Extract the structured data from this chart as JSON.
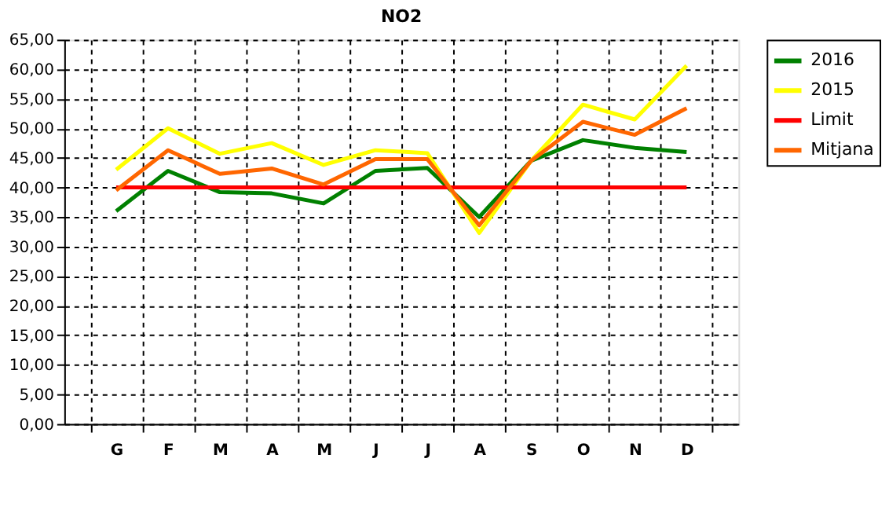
{
  "chart_data": {
    "type": "line",
    "title": "NO2",
    "categories": [
      "G",
      "F",
      "M",
      "A",
      "M",
      "J",
      "J",
      "A",
      "S",
      "O",
      "N",
      "D"
    ],
    "series": [
      {
        "name": "2016",
        "color": "#008000",
        "values": [
          36.0,
          42.8,
          39.2,
          39.0,
          37.3,
          42.8,
          43.3,
          35.0,
          44.5,
          48.0,
          46.7,
          46.0
        ]
      },
      {
        "name": "2015",
        "color": "#ffff00",
        "values": [
          43.0,
          50.0,
          45.7,
          47.5,
          43.8,
          46.3,
          45.8,
          32.3,
          44.5,
          54.0,
          51.5,
          60.6
        ]
      },
      {
        "name": "Limit",
        "color": "#ff0000",
        "values": [
          40,
          40,
          40,
          40,
          40,
          40,
          40,
          40,
          40,
          40,
          40,
          40
        ]
      },
      {
        "name": "Mitjana",
        "color": "#ff6600",
        "values": [
          39.5,
          46.3,
          42.3,
          43.2,
          40.5,
          44.8,
          44.8,
          33.6,
          44.5,
          51.1,
          48.9,
          53.4
        ]
      }
    ],
    "ylim": [
      0,
      65
    ],
    "yticks": [
      {
        "value": 0,
        "label": "0,00"
      },
      {
        "value": 5,
        "label": "5,00"
      },
      {
        "value": 10,
        "label": "10,00"
      },
      {
        "value": 15,
        "label": "15,00"
      },
      {
        "value": 20,
        "label": "20,00"
      },
      {
        "value": 25,
        "label": "25,00"
      },
      {
        "value": 30,
        "label": "30,00"
      },
      {
        "value": 35,
        "label": "35,00"
      },
      {
        "value": 40,
        "label": "40,00"
      },
      {
        "value": 45,
        "label": "45,00"
      },
      {
        "value": 50,
        "label": "50,00"
      },
      {
        "value": 55,
        "label": "55,00"
      },
      {
        "value": 60,
        "label": "60,00"
      },
      {
        "value": 65,
        "label": "65,00"
      }
    ],
    "grid": true,
    "legend": "right",
    "marker": "none",
    "line_style": "solid"
  }
}
